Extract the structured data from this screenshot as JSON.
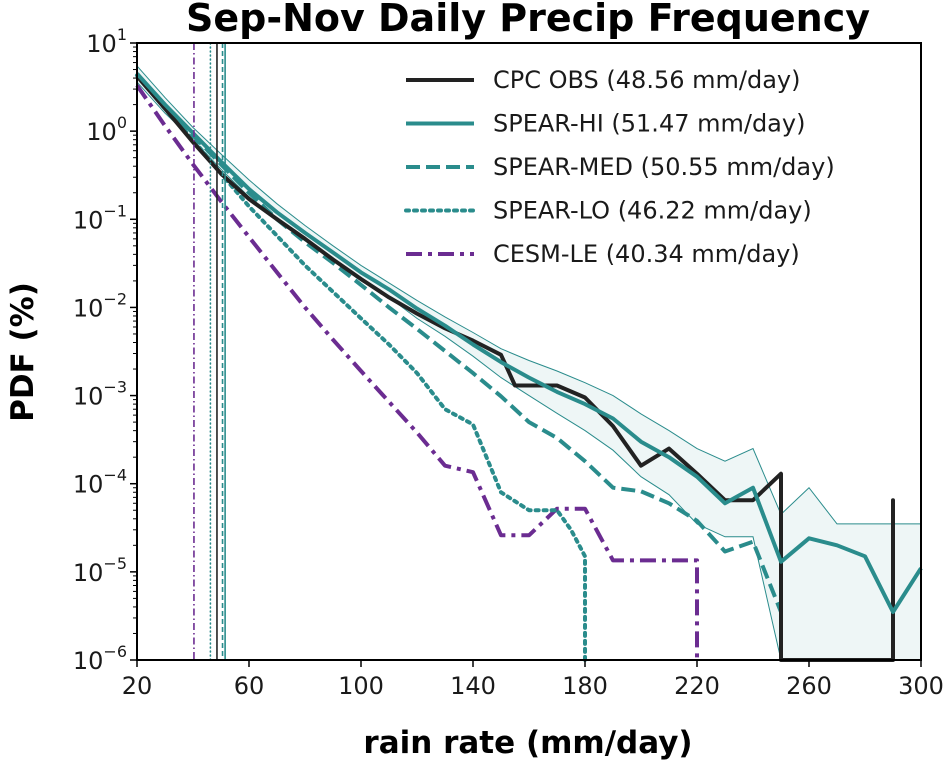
{
  "chart_data": {
    "type": "line",
    "title": "Sep-Nov Daily Precip Frequency",
    "xlabel": "rain rate (mm/day)",
    "ylabel": "PDF (%)",
    "xlim": [
      20,
      300
    ],
    "ylim": [
      1e-06,
      10
    ],
    "yscale": "log",
    "xticks": [
      20,
      60,
      100,
      140,
      180,
      220,
      260,
      300
    ],
    "xtick_labels": [
      "20",
      "60",
      "100",
      "140",
      "180",
      "220",
      "260",
      "300"
    ],
    "yticks": [
      {
        "base": "10",
        "exp": "1",
        "value": 10
      },
      {
        "base": "10",
        "exp": "0",
        "value": 1
      },
      {
        "base": "10",
        "exp": "−1",
        "value": 0.1
      },
      {
        "base": "10",
        "exp": "−2",
        "value": 0.01
      },
      {
        "base": "10",
        "exp": "−3",
        "value": 0.001
      },
      {
        "base": "10",
        "exp": "−4",
        "value": 0.0001
      },
      {
        "base": "10",
        "exp": "−5",
        "value": 1e-05
      },
      {
        "base": "10",
        "exp": "−6",
        "value": 1e-06
      }
    ],
    "grid": false,
    "legend_position": "top-right",
    "series": [
      {
        "name": "CPC OBS (48.56 mm/day)",
        "color": "#222222",
        "style": "solid",
        "mean": 48.56,
        "points": [
          [
            20,
            4.2
          ],
          [
            30,
            1.8
          ],
          [
            40,
            0.75
          ],
          [
            50,
            0.33
          ],
          [
            60,
            0.17
          ],
          [
            70,
            0.1
          ],
          [
            80,
            0.06
          ],
          [
            90,
            0.035
          ],
          [
            100,
            0.021
          ],
          [
            110,
            0.013
          ],
          [
            120,
            0.0085
          ],
          [
            130,
            0.0058
          ],
          [
            140,
            0.0042
          ],
          [
            150,
            0.0029
          ],
          [
            155,
            0.0013
          ],
          [
            170,
            0.0013
          ],
          [
            180,
            0.00095
          ],
          [
            190,
            0.00045
          ],
          [
            200,
            0.00016
          ],
          [
            210,
            0.00025
          ],
          [
            220,
            0.00013
          ],
          [
            230,
            6.5e-05
          ],
          [
            240,
            6.5e-05
          ],
          [
            250,
            0.00013
          ],
          [
            250,
            1e-06
          ],
          [
            290,
            1e-06
          ],
          [
            290,
            6.5e-05
          ],
          [
            290,
            1e-06
          ]
        ]
      },
      {
        "name": "SPEAR-HI (51.47 mm/day)",
        "color": "#2a8c8c",
        "style": "solid",
        "mean": 51.47,
        "points": [
          [
            20,
            4.5
          ],
          [
            30,
            2.0
          ],
          [
            40,
            0.95
          ],
          [
            50,
            0.45
          ],
          [
            60,
            0.22
          ],
          [
            70,
            0.12
          ],
          [
            80,
            0.07
          ],
          [
            90,
            0.042
          ],
          [
            100,
            0.025
          ],
          [
            110,
            0.016
          ],
          [
            120,
            0.0097
          ],
          [
            130,
            0.0062
          ],
          [
            140,
            0.0038
          ],
          [
            150,
            0.0024
          ],
          [
            160,
            0.0016
          ],
          [
            170,
            0.0011
          ],
          [
            180,
            0.0008
          ],
          [
            190,
            0.00055
          ],
          [
            200,
            0.0003
          ],
          [
            210,
            0.0002
          ],
          [
            220,
            0.00012
          ],
          [
            230,
            6e-05
          ],
          [
            240,
            9e-05
          ],
          [
            250,
            1.3e-05
          ],
          [
            260,
            2.4e-05
          ],
          [
            270,
            2e-05
          ],
          [
            280,
            1.5e-05
          ],
          [
            290,
            3.5e-06
          ],
          [
            300,
            1.1e-05
          ]
        ]
      },
      {
        "name": "SPEAR-MED (50.55 mm/day)",
        "color": "#2a8c8c",
        "style": "dashed",
        "mean": 50.55,
        "points": [
          [
            20,
            4.3
          ],
          [
            30,
            1.9
          ],
          [
            40,
            0.9
          ],
          [
            50,
            0.42
          ],
          [
            60,
            0.2
          ],
          [
            70,
            0.1
          ],
          [
            80,
            0.055
          ],
          [
            90,
            0.032
          ],
          [
            100,
            0.018
          ],
          [
            110,
            0.01
          ],
          [
            120,
            0.0057
          ],
          [
            130,
            0.0032
          ],
          [
            140,
            0.0018
          ],
          [
            150,
            0.00098
          ],
          [
            160,
            0.0005
          ],
          [
            170,
            0.00033
          ],
          [
            180,
            0.00018
          ],
          [
            190,
            9e-05
          ],
          [
            200,
            8.2e-05
          ],
          [
            210,
            6e-05
          ],
          [
            220,
            3.8e-05
          ],
          [
            230,
            1.7e-05
          ],
          [
            240,
            2.2e-05
          ],
          [
            250,
            3.5e-06
          ],
          [
            250,
            1e-06
          ]
        ]
      },
      {
        "name": "SPEAR-LO (46.22 mm/day)",
        "color": "#2a8c8c",
        "style": "dotted",
        "mean": 46.22,
        "points": [
          [
            20,
            4.3
          ],
          [
            30,
            1.8
          ],
          [
            40,
            0.8
          ],
          [
            50,
            0.33
          ],
          [
            60,
            0.14
          ],
          [
            70,
            0.065
          ],
          [
            80,
            0.03
          ],
          [
            90,
            0.015
          ],
          [
            100,
            0.0075
          ],
          [
            110,
            0.0038
          ],
          [
            120,
            0.0018
          ],
          [
            130,
            0.0007
          ],
          [
            140,
            0.00047
          ],
          [
            150,
            8e-05
          ],
          [
            160,
            5e-05
          ],
          [
            170,
            5e-05
          ],
          [
            175,
            3e-05
          ],
          [
            180,
            1.5e-05
          ],
          [
            180,
            1e-06
          ]
        ]
      },
      {
        "name": "CESM-LE (40.34 mm/day)",
        "color": "#6b2c91",
        "style": "dashdot",
        "mean": 40.34,
        "points": [
          [
            20,
            3.3
          ],
          [
            30,
            1.15
          ],
          [
            40,
            0.42
          ],
          [
            50,
            0.16
          ],
          [
            60,
            0.063
          ],
          [
            70,
            0.025
          ],
          [
            80,
            0.01
          ],
          [
            90,
            0.0043
          ],
          [
            100,
            0.0019
          ],
          [
            110,
            0.00085
          ],
          [
            120,
            0.00038
          ],
          [
            130,
            0.00016
          ],
          [
            140,
            0.000135
          ],
          [
            150,
            2.6e-05
          ],
          [
            160,
            2.6e-05
          ],
          [
            170,
            5.2e-05
          ],
          [
            180,
            5.2e-05
          ],
          [
            190,
            1.35e-05
          ],
          [
            220,
            1.35e-05
          ],
          [
            220,
            1e-06
          ]
        ]
      }
    ],
    "shading": {
      "color": "#2a8c8c",
      "upper": [
        [
          20,
          5.5
        ],
        [
          30,
          2.4
        ],
        [
          40,
          1.1
        ],
        [
          50,
          0.55
        ],
        [
          60,
          0.28
        ],
        [
          70,
          0.15
        ],
        [
          80,
          0.085
        ],
        [
          90,
          0.05
        ],
        [
          100,
          0.03
        ],
        [
          110,
          0.019
        ],
        [
          120,
          0.012
        ],
        [
          130,
          0.0078
        ],
        [
          140,
          0.0052
        ],
        [
          150,
          0.0034
        ],
        [
          160,
          0.0025
        ],
        [
          170,
          0.0019
        ],
        [
          180,
          0.0014
        ],
        [
          190,
          0.001
        ],
        [
          200,
          0.00062
        ],
        [
          210,
          0.0004
        ],
        [
          220,
          0.00025
        ],
        [
          230,
          0.00018
        ],
        [
          240,
          0.00025
        ],
        [
          250,
          4.5e-05
        ],
        [
          260,
          9e-05
        ],
        [
          270,
          3.5e-05
        ],
        [
          280,
          3.5e-05
        ],
        [
          290,
          3.5e-05
        ],
        [
          300,
          3.5e-05
        ]
      ],
      "lower": [
        [
          20,
          3.6
        ],
        [
          30,
          1.6
        ],
        [
          40,
          0.8
        ],
        [
          50,
          0.37
        ],
        [
          60,
          0.18
        ],
        [
          70,
          0.097
        ],
        [
          80,
          0.057
        ],
        [
          90,
          0.034
        ],
        [
          100,
          0.02
        ],
        [
          110,
          0.013
        ],
        [
          120,
          0.0075
        ],
        [
          130,
          0.0047
        ],
        [
          140,
          0.0028
        ],
        [
          150,
          0.0016
        ],
        [
          160,
          0.001
        ],
        [
          170,
          0.00063
        ],
        [
          180,
          0.0004
        ],
        [
          190,
          0.00024
        ],
        [
          200,
          0.00012
        ],
        [
          210,
          7.5e-05
        ],
        [
          220,
          3.5e-05
        ],
        [
          230,
          2.5e-05
        ],
        [
          240,
          2.5e-05
        ],
        [
          250,
          1e-06
        ],
        [
          300,
          1e-06
        ]
      ]
    }
  }
}
